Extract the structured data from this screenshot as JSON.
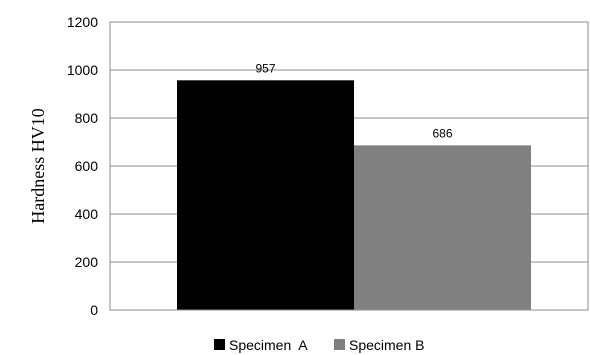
{
  "chart_data": {
    "type": "bar",
    "ylabel": "Hardness HV10",
    "ylim": [
      0,
      1200
    ],
    "yticks": [
      "0",
      "200",
      "400",
      "600",
      "800",
      "1000",
      "1200"
    ],
    "grid": true,
    "legend_position": "bottom",
    "series": [
      {
        "name": "Specimen  A",
        "value": 957,
        "label": "957",
        "color": "#000000"
      },
      {
        "name": "Specimen B",
        "value": 686,
        "label": "686",
        "color": "#808080"
      }
    ]
  }
}
